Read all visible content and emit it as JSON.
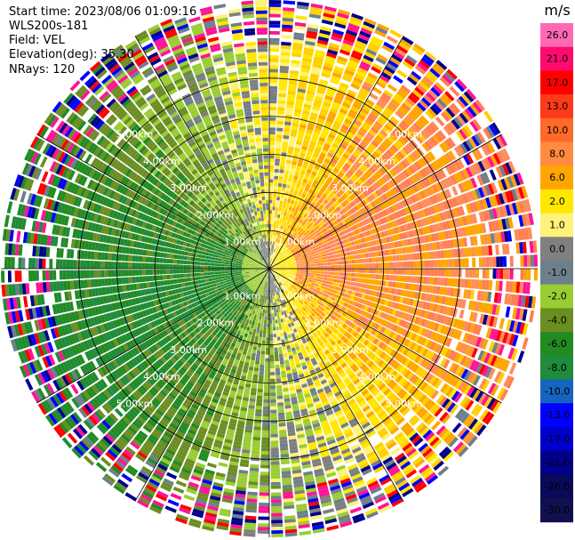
{
  "header": {
    "start_time": "Start time: 2023/08/06 01:09:16",
    "instrument": "WLS200s-181",
    "field": "Field: VEL",
    "elevation": "Elevation(deg): 35.30",
    "nrays": "NRays: 120"
  },
  "chart_data": {
    "type": "heatmap",
    "projection": "polar-ppi",
    "range_rings_km": [
      1.0,
      2.0,
      3.0,
      4.0,
      5.0
    ],
    "range_ring_labels": [
      "1.00km",
      "2.00km",
      "3.00km",
      "4.00km",
      "5.00km"
    ],
    "max_range_km": 7.05,
    "n_rays": 120,
    "colorbar": {
      "unit": "m/s",
      "ticks": [
        "26.0",
        "21.0",
        "17.0",
        "13.0",
        "10.0",
        "8.0",
        "6.0",
        "2.0",
        "1.0",
        "0.0",
        "-1.0",
        "-2.0",
        "-4.0",
        "-6.0",
        "-8.0",
        "-10.0",
        "-13.0",
        "-17.0",
        "-21.0",
        "-26.0",
        "-30.0"
      ],
      "colors": [
        "#ff69b4",
        "#ff0b6e",
        "#ff0000",
        "#ff3a1a",
        "#ff6a2a",
        "#ff8a40",
        "#ffa500",
        "#ffe700",
        "#fff27a",
        "#808080",
        "#6e7f8c",
        "#9acd32",
        "#6b8e23",
        "#228b22",
        "#1e8c3a",
        "#1565c0",
        "#0000ff",
        "#0000cd",
        "#00008b",
        "#0a0a5a",
        "#101050"
      ]
    }
  }
}
